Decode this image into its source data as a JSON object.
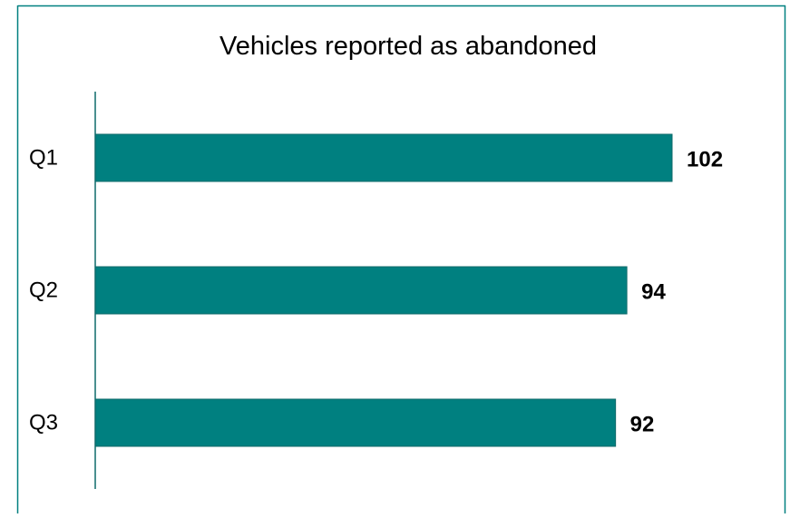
{
  "chart_data": {
    "type": "bar",
    "orientation": "horizontal",
    "title": "Vehicles reported as abandoned",
    "categories": [
      "Q1",
      "Q2",
      "Q3"
    ],
    "values": [
      102,
      94,
      92
    ],
    "xlabel": "",
    "ylabel": "",
    "grid": false,
    "legend": "none",
    "bar_color": "#008080",
    "border_color": "#008080",
    "axis_color": "#0f6a6a"
  }
}
